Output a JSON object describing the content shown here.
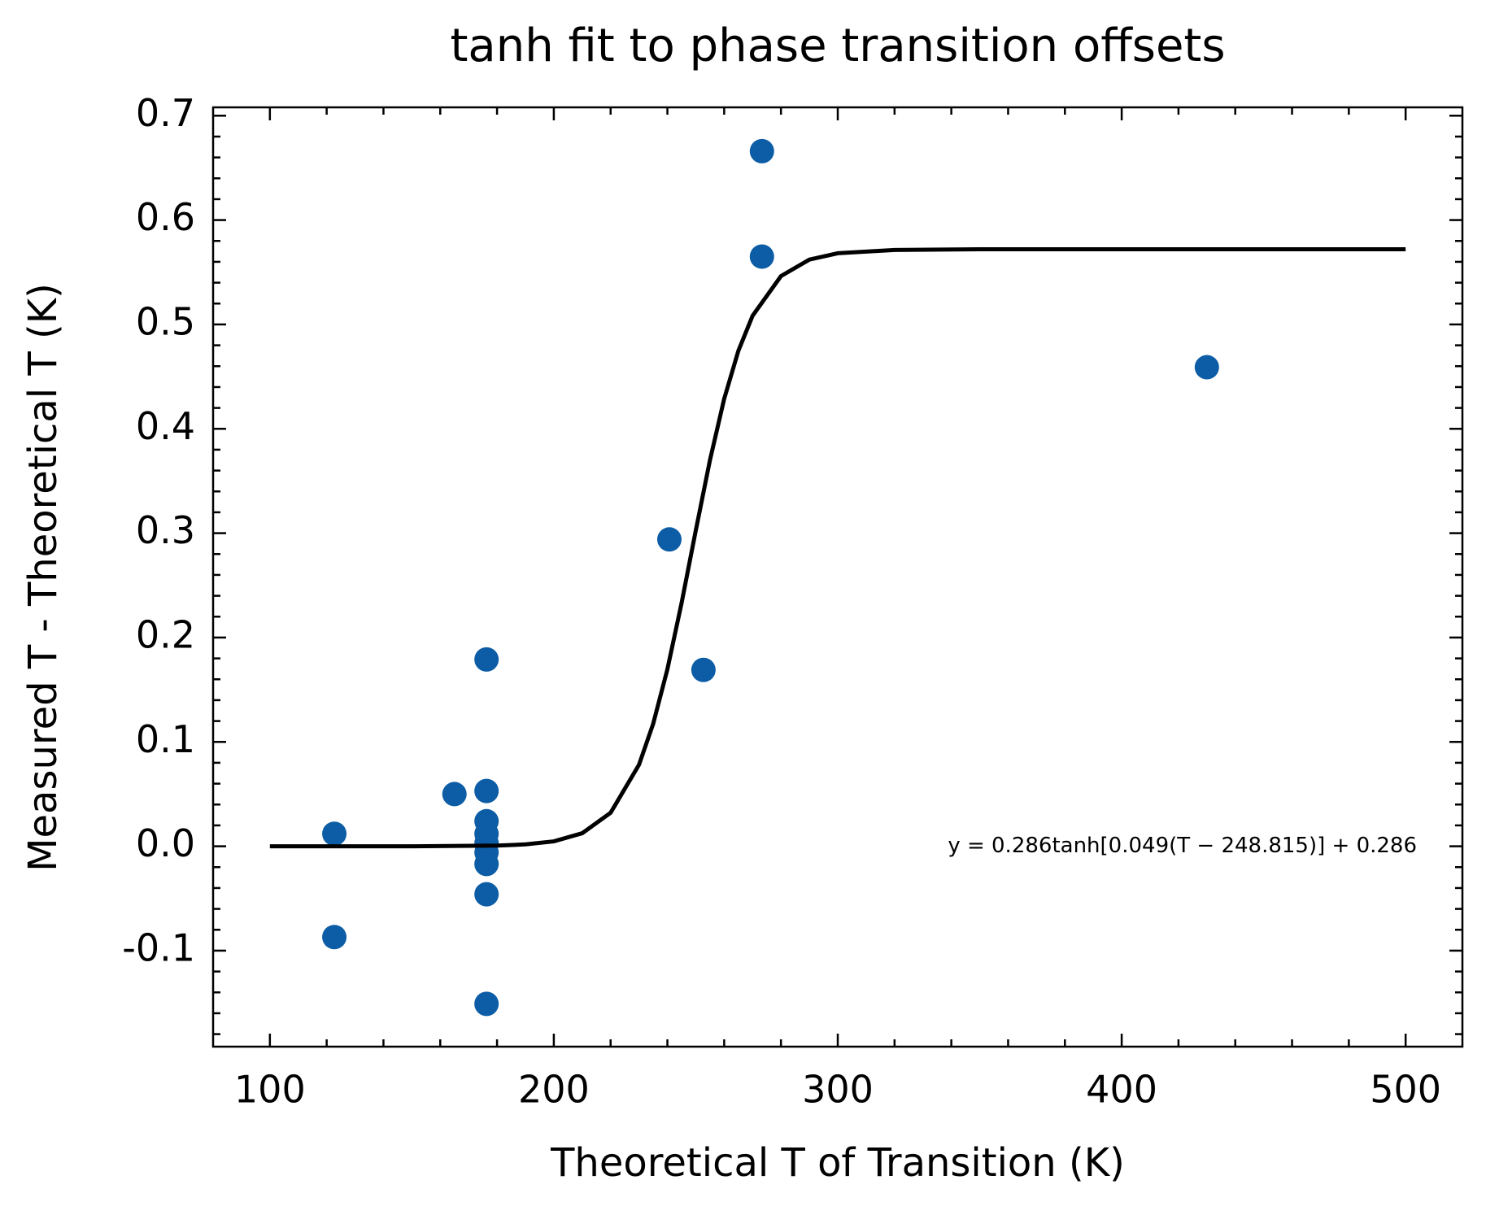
{
  "chart_data": {
    "type": "scatter",
    "title": "tanh fit to phase transition offsets",
    "x_label": "Theoretical T of Transition (K)",
    "y_label": "Measured T - Theoretical T (K)",
    "annotation": "y = 0.286tanh[0.049(T − 248.815)] + 0.286",
    "xlim": [
      80,
      520
    ],
    "ylim": [
      -0.192,
      0.708
    ],
    "xticks": [
      100,
      200,
      300,
      400,
      500
    ],
    "yticks": [
      {
        "value": -0.1,
        "label": "-0.1"
      },
      {
        "value": 0,
        "label": "0.0"
      },
      0.1,
      0.2,
      0.3,
      0.4,
      0.5,
      0.6,
      0.7
    ],
    "series": [
      {
        "type": "scatter",
        "color": "#0c5da5",
        "x": [
          122.7,
          122.7,
          165,
          176.3,
          176.3,
          176.3,
          176.3,
          176.3,
          176.3,
          176.3,
          176.3,
          176.3,
          240.7,
          252.7,
          273.3,
          273.3,
          430
        ],
        "values": [
          0.012,
          -0.087,
          0.05,
          0.179,
          0.053,
          0.024,
          0.012,
          0.003,
          -0.006,
          -0.017,
          -0.046,
          -0.151,
          0.294,
          0.169,
          0.666,
          0.565,
          0.459
        ]
      },
      {
        "type": "line",
        "color": "#000000",
        "x": [
          100,
          150,
          180,
          190,
          200,
          210,
          220,
          230,
          235,
          240,
          245,
          250,
          255,
          260,
          265,
          270,
          280,
          290,
          300,
          320,
          350,
          400,
          450,
          500
        ],
        "values": [
          0,
          0,
          0.0007,
          0.0018,
          0.0047,
          0.0125,
          0.0321,
          0.0781,
          0.1174,
          0.1696,
          0.2331,
          0.3026,
          0.3701,
          0.4287,
          0.4748,
          0.5083,
          0.5463,
          0.5621,
          0.5682,
          0.5713,
          0.572,
          0.572,
          0.572,
          0.572
        ]
      }
    ]
  }
}
